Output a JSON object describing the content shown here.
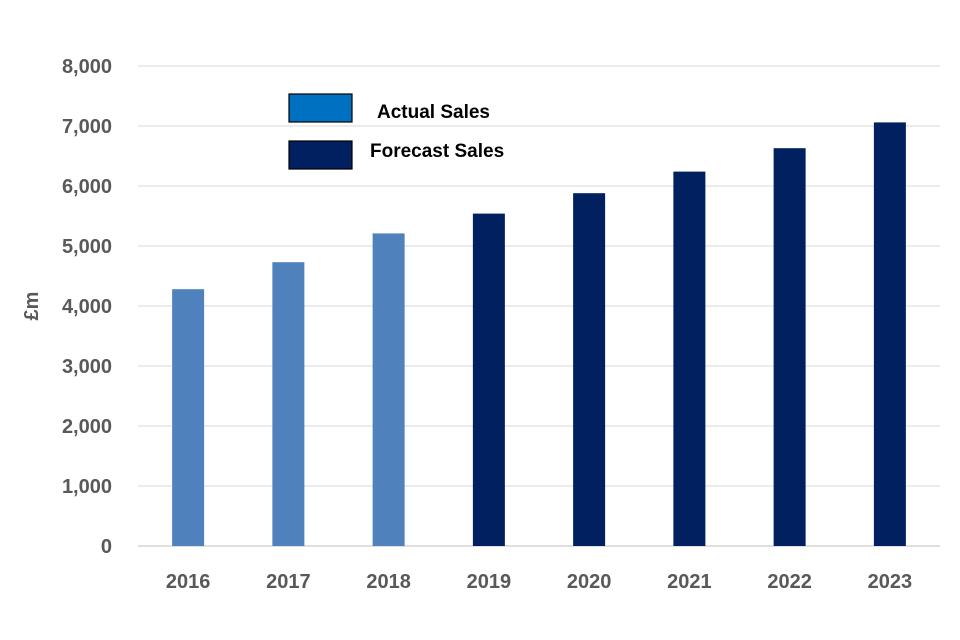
{
  "chart_data": {
    "type": "bar",
    "title": "",
    "xlabel": "",
    "ylabel": "£m",
    "ylim": [
      0,
      8000
    ],
    "yticks": [
      0,
      1000,
      2000,
      3000,
      4000,
      5000,
      6000,
      7000,
      8000
    ],
    "ytick_labels": [
      "0",
      "1,000",
      "2,000",
      "3,000",
      "4,000",
      "5,000",
      "6,000",
      "7,000",
      "8,000"
    ],
    "grid": true,
    "legend_position": "top-left",
    "categories": [
      "2016",
      "2017",
      "2018",
      "2019",
      "2020",
      "2021",
      "2022",
      "2023"
    ],
    "series": [
      {
        "name": "Actual Sales",
        "color": "#4F81BD",
        "legend_color": "#0070C0",
        "values": [
          4280,
          4730,
          5210,
          null,
          null,
          null,
          null,
          null
        ]
      },
      {
        "name": "Forecast Sales",
        "color": "#002060",
        "legend_color": "#002060",
        "values": [
          null,
          null,
          null,
          5540,
          5880,
          6240,
          6630,
          7060
        ]
      }
    ]
  }
}
